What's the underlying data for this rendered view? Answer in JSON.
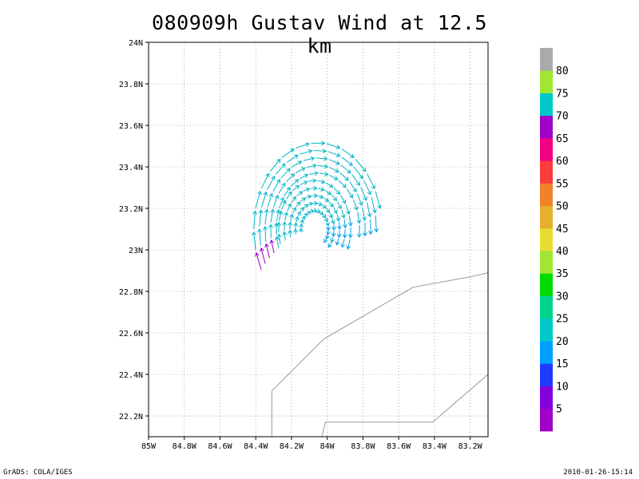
{
  "title": "080909h Gustav Wind at 12.5 km",
  "footer": {
    "left": "GrADS: COLA/IGES",
    "right": "2010-01-26-15:14"
  },
  "map": {
    "lon_range": [
      -85.0,
      -83.1
    ],
    "lat_range": [
      22.1,
      24.0
    ],
    "x_ticks": [
      {
        "value": -85.0,
        "label": "85W"
      },
      {
        "value": -84.8,
        "label": "84.8W"
      },
      {
        "value": -84.6,
        "label": "84.6W"
      },
      {
        "value": -84.4,
        "label": "84.4W"
      },
      {
        "value": -84.2,
        "label": "84.2W"
      },
      {
        "value": -84.0,
        "label": "84W"
      },
      {
        "value": -83.8,
        "label": "83.8W"
      },
      {
        "value": -83.6,
        "label": "83.6W"
      },
      {
        "value": -83.4,
        "label": "83.4W"
      },
      {
        "value": -83.2,
        "label": "83.2W"
      }
    ],
    "y_ticks": [
      {
        "value": 22.2,
        "label": "22.2N"
      },
      {
        "value": 22.4,
        "label": "22.4N"
      },
      {
        "value": 22.6,
        "label": "22.6N"
      },
      {
        "value": 22.8,
        "label": "22.8N"
      },
      {
        "value": 23.0,
        "label": "23N"
      },
      {
        "value": 23.2,
        "label": "23.2N"
      },
      {
        "value": 23.4,
        "label": "23.4N"
      },
      {
        "value": 23.6,
        "label": "23.6N"
      },
      {
        "value": 23.8,
        "label": "23.8N"
      },
      {
        "value": 24.0,
        "label": "24N"
      }
    ],
    "grid": true,
    "coastlines": [
      [
        [
          -84.31,
          22.1
        ],
        [
          -84.31,
          22.32
        ],
        [
          -84.02,
          22.57
        ],
        [
          -83.8,
          22.68
        ],
        [
          -83.52,
          22.82
        ],
        [
          -83.2,
          22.87
        ],
        [
          -83.1,
          22.89
        ]
      ],
      [
        [
          -84.03,
          22.1
        ],
        [
          -84.01,
          22.17
        ],
        [
          -83.41,
          22.17
        ],
        [
          -83.1,
          22.4
        ]
      ]
    ],
    "storm_center": {
      "lon": -84.07,
      "lat": 23.1
    }
  },
  "colorbar": {
    "colors": [
      "#a000c8",
      "#8200dc",
      "#1e3cff",
      "#00a0ff",
      "#00c8c8",
      "#00d28c",
      "#00dc00",
      "#a0e632",
      "#e6dc32",
      "#e6af2d",
      "#f08228",
      "#fa3c3c",
      "#f00082",
      "#a000c8",
      "#00c8c8",
      "#a0e632",
      "#aaaaaa"
    ],
    "labels": [
      "5",
      "10",
      "15",
      "20",
      "25",
      "30",
      "35",
      "40",
      "45",
      "50",
      "55",
      "60",
      "65",
      "70",
      "75",
      "80"
    ]
  }
}
